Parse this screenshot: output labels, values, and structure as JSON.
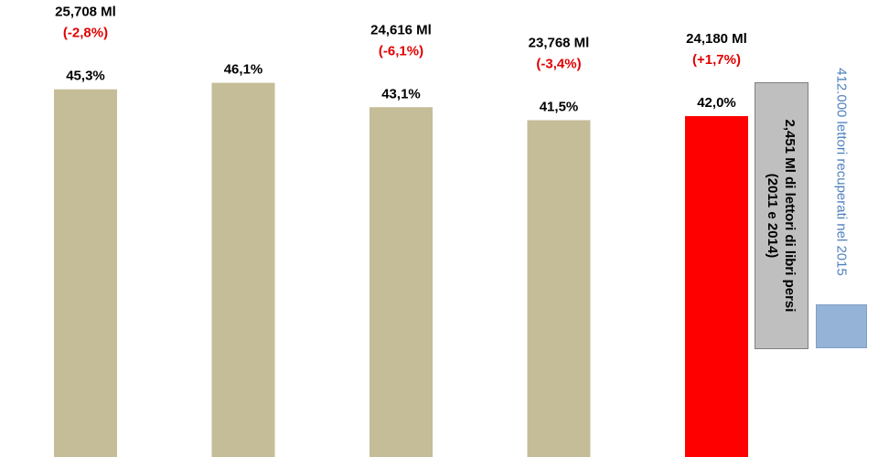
{
  "chart_data": {
    "type": "bar",
    "ylim": [
      0,
      50
    ],
    "colors": {
      "default": "#c4bd97",
      "highlight": "#ff0000",
      "gray_box": "#bfbfbf",
      "blue_box": "#95b3d7",
      "red_text": "#e00000"
    },
    "bars": [
      {
        "value": 45.3,
        "value_label": "45,3%",
        "readers": "25,708 Ml",
        "change": "(-2,8%)",
        "color": "#c4bd97"
      },
      {
        "value": 46.1,
        "value_label": "46,1%",
        "readers": "",
        "change": "",
        "color": "#c4bd97"
      },
      {
        "value": 43.1,
        "value_label": "43,1%",
        "readers": "24,616 Ml",
        "change": "(-6,1%)",
        "color": "#c4bd97"
      },
      {
        "value": 41.5,
        "value_label": "41,5%",
        "readers": "23,768 Ml",
        "change": "(-3,4%)",
        "color": "#c4bd97"
      },
      {
        "value": 42.0,
        "value_label": "42,0%",
        "readers": "24,180 Ml",
        "change": "(+1,7%)",
        "color": "#ff0000"
      }
    ]
  },
  "annotations": {
    "lost_line1": "2,451 Ml di lettori di libri persi",
    "lost_line2": "(2011 e 2014)",
    "recovered": "412.000 lettori recuperati nel 2015"
  }
}
